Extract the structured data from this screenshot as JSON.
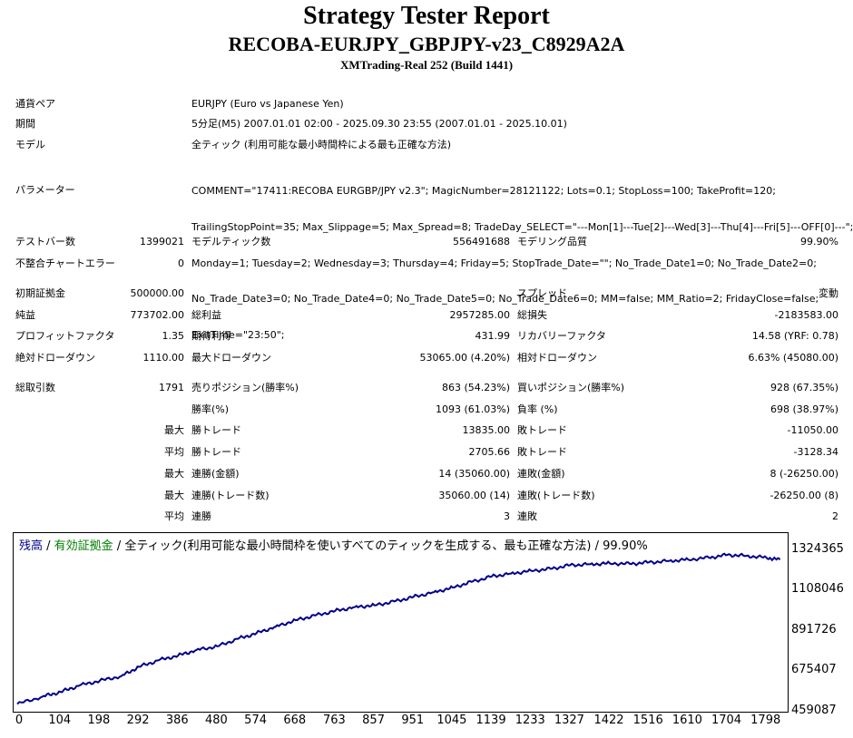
{
  "header": {
    "title": "Strategy Tester Report",
    "ea_name": "RECOBA-EURJPY_GBPJPY-v23_C8929A2A",
    "server": "XMTrading-Real 252 (Build 1441)"
  },
  "info": {
    "symbol_label": "通貨ペア",
    "symbol_value": "EURJPY (Euro vs Japanese Yen)",
    "period_label": "期間",
    "period_value": "5分足(M5) 2007.01.01 02:00 - 2025.09.30 23:55 (2007.01.01 - 2025.10.01)",
    "model_label": "モデル",
    "model_value": "全ティック (利用可能な最小時間枠による最も正確な方法)",
    "params_label": "パラメーター",
    "params_lines": [
      "COMMENT=\"17411:RECOBA EURGBP/JPY v2.3\"; MagicNumber=28121122; Lots=0.1; StopLoss=100; TakeProfit=120;",
      "TrailingStopPoint=35; Max_Slippage=5; Max_Spread=8; TradeDay_SELECT=\"---Mon[1]---Tue[2]---Wed[3]---Thu[4]---Fri[5]---OFF[0]---\";",
      "Monday=1; Tuesday=2; Wednesday=3; Thursday=4; Friday=5; StopTrade_Date=\"\"; No_Trade_Date1=0; No_Trade_Date2=0;",
      "No_Trade_Date3=0; No_Trade_Date4=0; No_Trade_Date5=0; No_Trade_Date6=0; MM=false; MM_Ratio=2; FridayClose=false;",
      "ExitTime=\"23:50\";"
    ]
  },
  "stats": {
    "bars_label": "テストバー数",
    "bars_value": "1399021",
    "ticks_label": "モデルティック数",
    "ticks_value": "556491688",
    "quality_label": "モデリング品質",
    "quality_value": "99.90%",
    "mismatch_label": "不整合チャートエラー",
    "mismatch_value": "0",
    "deposit_label": "初期証拠金",
    "deposit_value": "500000.00",
    "spread_label": "スプレッド",
    "spread_value": "変動",
    "net_label": "純益",
    "net_value": "773702.00",
    "gross_profit_label": "総利益",
    "gross_profit_value": "2957285.00",
    "gross_loss_label": "総損失",
    "gross_loss_value": "-2183583.00",
    "pf_label": "プロフィットファクタ",
    "pf_value": "1.35",
    "expected_label": "期待利得",
    "expected_value": "431.99",
    "recovery_label": "リカバリーファクタ",
    "recovery_value": "14.58 (YRF: 0.78)",
    "abs_dd_label": "絶対ドローダウン",
    "abs_dd_value": "1110.00",
    "max_dd_label": "最大ドローダウン",
    "max_dd_value": "53065.00 (4.20%)",
    "rel_dd_label": "相対ドローダウン",
    "rel_dd_value": "6.63% (45080.00)",
    "trades_label": "総取引数",
    "trades_value": "1791",
    "short_label": "売りポジション(勝率%)",
    "short_value": "863 (54.23%)",
    "long_label": "買いポジション(勝率%)",
    "long_value": "928 (67.35%)",
    "win_rate_label": "勝率(%)",
    "win_rate_value": "1093 (61.03%)",
    "loss_rate_label": "負率 (%)",
    "loss_rate_value": "698 (38.97%)",
    "max_prefix": "最大",
    "avg_prefix": "平均",
    "largest_win_label": "勝トレード",
    "largest_win_value": "13835.00",
    "largest_loss_label": "敗トレード",
    "largest_loss_value": "-11050.00",
    "avg_win_label": "勝トレード",
    "avg_win_value": "2705.66",
    "avg_loss_label": "敗トレード",
    "avg_loss_value": "-3128.34",
    "cons_wins_money_label": "連勝(金額)",
    "cons_wins_money_value": "14 (35060.00)",
    "cons_losses_money_label": "連敗(金額)",
    "cons_losses_money_value": "8 (-26250.00)",
    "cons_wins_count_label": "連勝(トレード数)",
    "cons_wins_count_value": "35060.00 (14)",
    "cons_losses_count_label": "連敗(トレード数)",
    "cons_losses_count_value": "-26250.00 (8)",
    "avg_cons_wins_label": "連勝",
    "avg_cons_wins_value": "3",
    "avg_cons_losses_label": "連敗",
    "avg_cons_losses_value": "2"
  },
  "legend": {
    "balance": "残高",
    "sep1": " / ",
    "equity": "有効証拠金",
    "rest": " / 全ティック(利用可能な最小時間枠を使いすべてのティックを生成する、最も正確な方法) / 99.90%"
  },
  "chart_data": {
    "type": "line",
    "series": [
      {
        "name": "残高",
        "color": "#00008b",
        "x": [
          0,
          60,
          104,
          150,
          198,
          250,
          292,
          340,
          386,
          430,
          480,
          530,
          574,
          620,
          668,
          715,
          763,
          810,
          857,
          905,
          951,
          1000,
          1045,
          1090,
          1139,
          1185,
          1233,
          1280,
          1327,
          1375,
          1422,
          1470,
          1516,
          1565,
          1610,
          1660,
          1704,
          1750,
          1798,
          1830
        ],
        "y": [
          500000,
          540000,
          565000,
          600000,
          625000,
          650000,
          700000,
          735000,
          760000,
          790000,
          810000,
          850000,
          880000,
          915000,
          950000,
          975000,
          1000000,
          1020000,
          1030000,
          1050000,
          1075000,
          1100000,
          1125000,
          1155000,
          1185000,
          1200000,
          1215000,
          1225000,
          1245000,
          1250000,
          1255000,
          1252000,
          1260000,
          1268000,
          1275000,
          1285000,
          1300000,
          1295000,
          1285000,
          1273702
        ]
      }
    ],
    "yticks": [
      459087,
      675407,
      891726,
      1108046,
      1324365
    ],
    "xticks": [
      0,
      104,
      198,
      292,
      386,
      480,
      574,
      668,
      763,
      857,
      951,
      1045,
      1139,
      1233,
      1327,
      1422,
      1516,
      1610,
      1704,
      1798
    ],
    "ylim": [
      459087,
      1324365
    ],
    "xlim": [
      0,
      1840
    ]
  }
}
